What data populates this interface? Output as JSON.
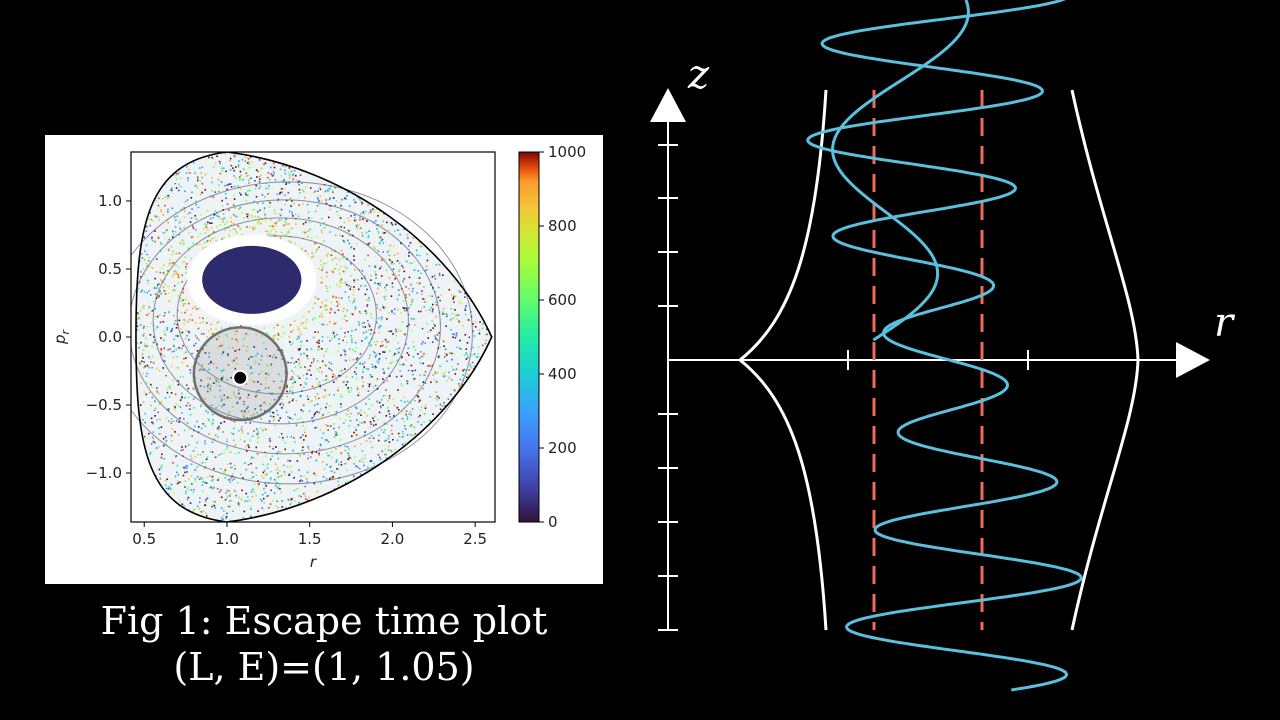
{
  "chart_data": [
    {
      "type": "scatter",
      "title": "",
      "xlabel": "r",
      "ylabel": "p_r",
      "xlim": [
        0.42,
        2.62
      ],
      "ylim": [
        -1.36,
        1.36
      ],
      "x_ticks": [
        "0.5",
        "1.0",
        "1.5",
        "2.0",
        "2.5"
      ],
      "x_tick_values": [
        0.5,
        1.0,
        1.5,
        2.0,
        2.5
      ],
      "y_ticks": [
        "1.0",
        "0.5",
        "0.0",
        "−0.5",
        "−1.0"
      ],
      "y_tick_values": [
        1.0,
        0.5,
        0.0,
        -0.5,
        -1.0
      ],
      "colorbar": {
        "min": 0,
        "max": 1000,
        "ticks": [
          "0",
          "200",
          "400",
          "600",
          "800",
          "1000"
        ],
        "tick_values": [
          0,
          200,
          400,
          600,
          800,
          1000
        ],
        "colormap": "turbo"
      },
      "boundary": {
        "r_min": 0.45,
        "r_max": 2.6,
        "p_max": 1.36,
        "p_min": -1.36
      },
      "island": {
        "center_r": 1.15,
        "center_p": 0.42,
        "half_width_r": 0.3,
        "half_height_p": 0.25,
        "value": 0
      },
      "highlight_point": {
        "r": 1.08,
        "p": -0.3
      },
      "highlight_circle": {
        "r": 1.08,
        "p": -0.27,
        "radius_r": 0.28
      },
      "grid": false,
      "legend": "none"
    },
    {
      "type": "line",
      "xlabel": "r",
      "ylabel": "z",
      "series_color": "#5bc0de",
      "dashed_color": "#f06a5a",
      "boundary_color": "#ffffff"
    }
  ],
  "caption": {
    "line1": "Fig 1: Escape time plot",
    "line2": "(L, E)=(1, 1.05)"
  },
  "colors": {
    "background": "#000000",
    "trajectory": "#5bc0de",
    "dashed": "#f06a5a",
    "island": "#2e2a6e"
  }
}
